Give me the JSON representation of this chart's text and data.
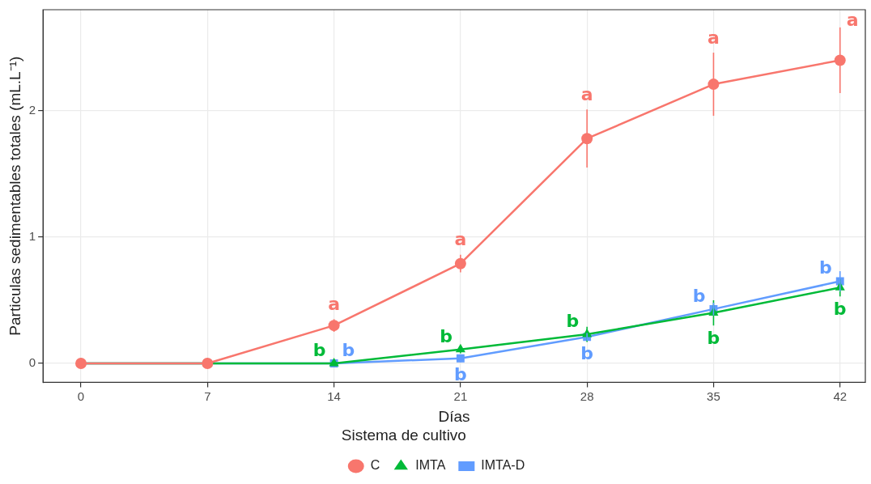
{
  "chart_data": {
    "type": "line",
    "xlabel": "Días",
    "ylabel": "Particulas sedimentables totales (mL.L⁻¹)",
    "legend_title": "Sistema de cultivo",
    "legend": "bottom",
    "grid": true,
    "line_style": "solid",
    "x": [
      0,
      7,
      14,
      21,
      28,
      35,
      42
    ],
    "xlim": [
      -2.1,
      43.4
    ],
    "xticks": [
      0,
      7,
      14,
      21,
      28,
      35,
      42
    ],
    "ylim": [
      -0.15,
      2.8
    ],
    "yticks": [
      0,
      1,
      2
    ],
    "series": [
      {
        "name": "C",
        "color": "#f8766d",
        "marker": "circle",
        "values": [
          0,
          0,
          0.3,
          0.79,
          1.78,
          2.21,
          2.4
        ],
        "errors": [
          null,
          null,
          0.05,
          0.07,
          0.23,
          0.25,
          0.26
        ],
        "value_labels": [
          null,
          null,
          "a",
          "a",
          "a",
          "a",
          "a"
        ]
      },
      {
        "name": "IMTA",
        "color": "#00ba38",
        "marker": "triangle",
        "values": [
          0,
          0,
          0,
          0.11,
          0.23,
          0.4,
          0.6
        ],
        "errors": [
          null,
          null,
          null,
          0.03,
          0.06,
          0.1,
          0.07
        ],
        "value_labels": [
          null,
          null,
          "b",
          "b",
          "b",
          "b",
          "b"
        ]
      },
      {
        "name": "IMTA-D",
        "color": "#619cff",
        "marker": "square",
        "values": [
          0,
          0,
          0,
          0.04,
          0.21,
          0.43,
          0.65
        ],
        "errors": [
          null,
          null,
          null,
          0.03,
          0.03,
          0.05,
          0.08
        ],
        "value_labels": [
          null,
          null,
          "b",
          "b",
          "b",
          "b",
          "b"
        ]
      }
    ]
  }
}
